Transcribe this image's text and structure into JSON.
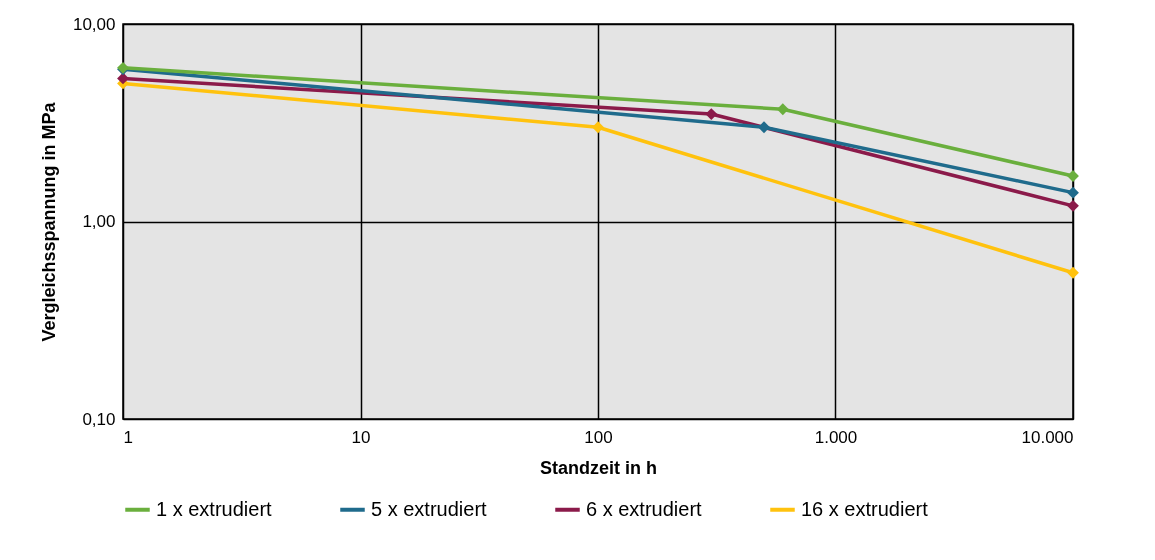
{
  "chart_data": {
    "type": "line",
    "xlabel": "Standzeit in h",
    "ylabel": "Vergleichsspannung in MPa",
    "series": [
      {
        "name": "1 x extrudiert",
        "color": "#6aaf3d",
        "x": [
          1,
          600,
          10000
        ],
        "values": [
          6.0,
          3.7,
          1.7
        ]
      },
      {
        "name": "5 x extrudiert",
        "color": "#1f6b8c",
        "x": [
          1,
          500,
          10000
        ],
        "values": [
          5.9,
          3.0,
          1.4
        ]
      },
      {
        "name": "6 x extrudiert",
        "color": "#8b1a4a",
        "x": [
          1,
          300,
          10000
        ],
        "values": [
          5.3,
          3.5,
          1.2
        ]
      },
      {
        "name": "16 x extrudiert",
        "color": "#ffc20e",
        "x": [
          1,
          100,
          10000
        ],
        "values": [
          5.0,
          3.0,
          0.55
        ]
      }
    ],
    "log": "xy",
    "xlim": [
      1,
      10000
    ],
    "ylim": [
      0.1,
      10
    ],
    "xticks": [
      1,
      10,
      100,
      {
        "value": 1000,
        "label": "1.000"
      },
      {
        "value": 10000,
        "label": "10.000"
      }
    ],
    "yticks": [
      {
        "value": 0.1,
        "label": "0,10"
      },
      {
        "value": 1,
        "label": "1,00"
      },
      {
        "value": 10,
        "label": "10,00"
      }
    ],
    "grid": true,
    "legend": "bottom",
    "marker": "diamond",
    "line_style": "solid"
  }
}
